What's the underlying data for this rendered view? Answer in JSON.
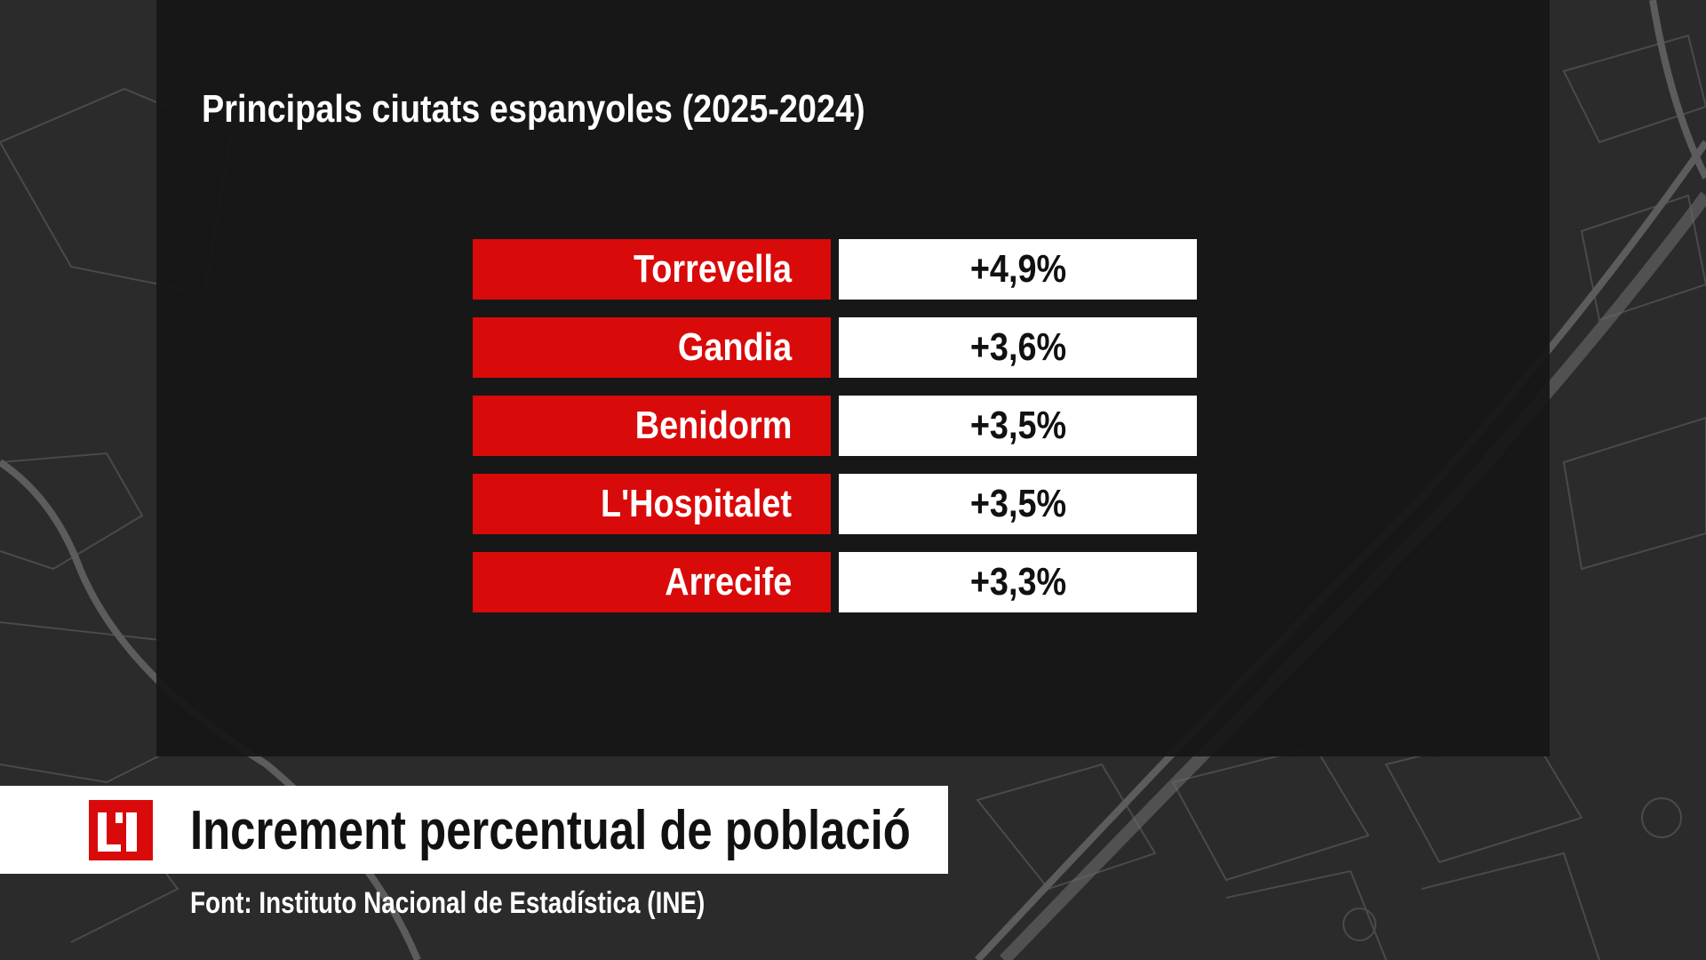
{
  "chart_data": {
    "type": "table",
    "title": "Principals ciutats espanyoles (2025-2024)",
    "categories": [
      "Torrevella",
      "Gandia",
      "Benidorm",
      "L'Hospitalet",
      "Arrecife"
    ],
    "values": [
      4.9,
      3.6,
      3.5,
      3.5,
      3.3
    ],
    "value_labels": [
      "+4,9%",
      "+3,6%",
      "+3,5%",
      "+3,5%",
      "+3,3%"
    ],
    "unit": "%"
  },
  "lower_third": {
    "title": "Increment percentual de població",
    "source": "Font: Instituto Nacional de Estadística (INE)"
  },
  "colors": {
    "accent_red": "#d90a0a",
    "panel": "#151515",
    "background": "#2b2b2b"
  }
}
